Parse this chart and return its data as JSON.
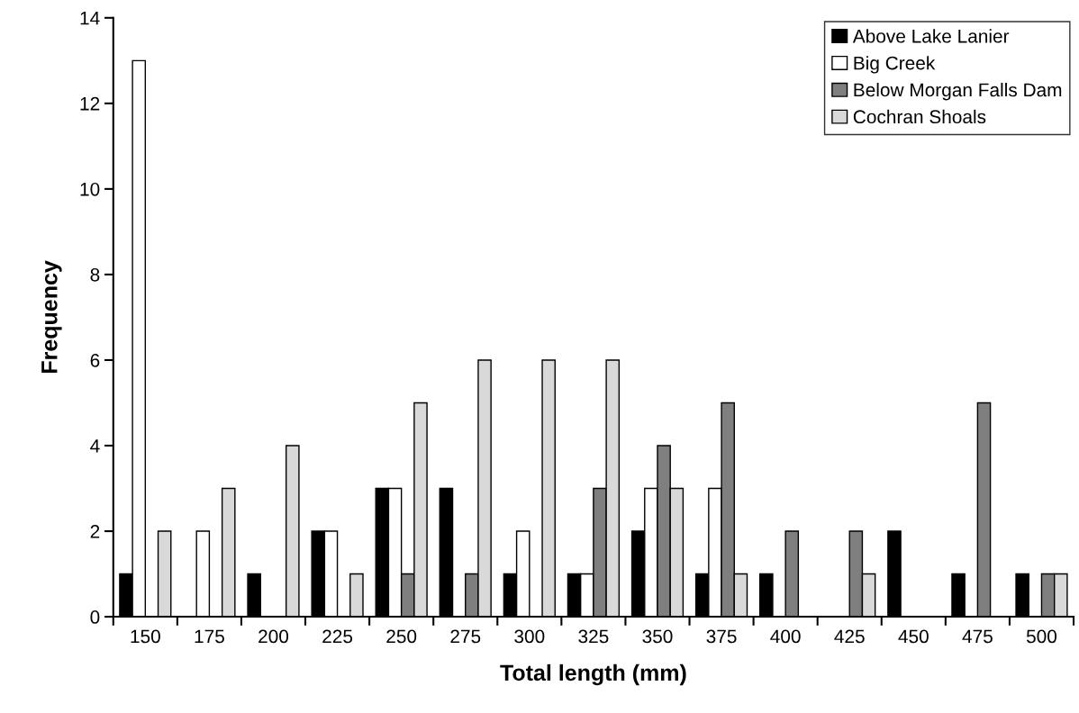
{
  "chart_data": {
    "type": "bar",
    "xlabel": "Total length (mm)",
    "ylabel": "Frequency",
    "categories": [
      "150",
      "175",
      "200",
      "225",
      "250",
      "275",
      "300",
      "325",
      "350",
      "375",
      "400",
      "425",
      "450",
      "475",
      "500"
    ],
    "series": [
      {
        "name": "Above Lake Lanier",
        "color": "#000000",
        "values": [
          1,
          0,
          1,
          2,
          3,
          3,
          1,
          1,
          2,
          1,
          1,
          0,
          2,
          1,
          1
        ]
      },
      {
        "name": "Big Creek",
        "color": "#ffffff",
        "values": [
          13,
          2,
          0,
          2,
          3,
          0,
          2,
          1,
          3,
          3,
          0,
          0,
          0,
          0,
          0
        ]
      },
      {
        "name": "Below Morgan Falls Dam",
        "color": "#7f7f7f",
        "values": [
          0,
          0,
          0,
          0,
          1,
          1,
          0,
          3,
          4,
          5,
          2,
          2,
          0,
          5,
          1
        ]
      },
      {
        "name": "Cochran Shoals",
        "color": "#d9d9d9",
        "values": [
          2,
          3,
          4,
          1,
          5,
          6,
          6,
          6,
          3,
          1,
          0,
          1,
          0,
          0,
          1
        ]
      }
    ],
    "ylim": [
      0,
      14
    ],
    "yticks": [
      0,
      2,
      4,
      6,
      8,
      10,
      12,
      14
    ],
    "grid": false,
    "legend": "top right"
  }
}
